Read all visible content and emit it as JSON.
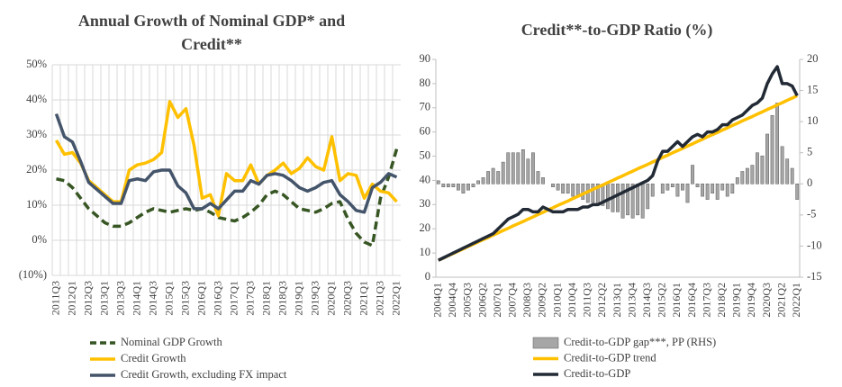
{
  "chart_data": [
    {
      "type": "line",
      "title": "Annual Growth of Nominal GDP* and Credit**",
      "categories": [
        "2011Q3",
        null,
        "2012Q1",
        null,
        "2012Q3",
        null,
        "2013Q1",
        null,
        "2013Q3",
        null,
        "2014Q1",
        null,
        "2014Q3",
        null,
        "2015Q1",
        null,
        "2015Q3",
        null,
        "2016Q1",
        null,
        "2016Q3",
        null,
        "2017Q1",
        null,
        "2017Q3",
        null,
        "2018Q1",
        null,
        "2018Q3",
        null,
        "2019Q1",
        null,
        "2019Q3",
        null,
        "2020Q1",
        null,
        "2020Q3",
        null,
        "2021Q1",
        null,
        "2021Q3",
        null,
        "2022Q1"
      ],
      "series": [
        {
          "name": "Nominal GDP Growth",
          "color": "#375623",
          "style": "dashed",
          "values": [
            17.5,
            17,
            15,
            12,
            9,
            7,
            5,
            4,
            4,
            5,
            6.5,
            8,
            9,
            8.5,
            8,
            8.5,
            9,
            8.5,
            9,
            8,
            6.5,
            6,
            5.5,
            6.5,
            8,
            10,
            13,
            14,
            13,
            11,
            9,
            8.5,
            8,
            9,
            10.5,
            11,
            6,
            2,
            -0.5,
            -1.5,
            12,
            18,
            26
          ]
        },
        {
          "name": "Credit Growth",
          "color": "#FFC000",
          "style": "solid",
          "values": [
            28.5,
            24.5,
            25,
            22,
            17,
            15,
            13,
            11,
            11,
            20,
            21.5,
            22,
            23,
            25,
            39.5,
            35,
            37.5,
            27,
            12,
            13,
            7,
            19,
            17,
            17,
            21.5,
            16,
            18.5,
            20,
            22,
            19,
            20.5,
            23.5,
            21,
            20,
            29.5,
            17,
            19,
            18.5,
            12,
            16,
            14,
            13.5,
            11
          ]
        },
        {
          "name": "Credit Growth, excluding FX impact",
          "color": "#44546A",
          "style": "solid",
          "values": [
            36,
            29.5,
            28,
            22.5,
            16.5,
            14.5,
            12.5,
            10.5,
            10.5,
            17,
            17.5,
            17,
            19.5,
            20,
            20,
            15.5,
            13.5,
            9,
            9,
            10.5,
            9,
            11.5,
            14,
            14,
            17,
            16,
            18.5,
            19,
            18.5,
            17,
            15,
            14,
            15,
            16.5,
            17,
            13,
            11,
            8.5,
            8,
            15,
            16.5,
            19,
            18
          ]
        }
      ],
      "ylim": [
        -10,
        50
      ],
      "yticks": [
        {
          "value": -10,
          "label": "(10%)"
        },
        {
          "value": 0,
          "label": "0%"
        },
        {
          "value": 10,
          "label": "10%"
        },
        {
          "value": 20,
          "label": "20%"
        },
        {
          "value": 30,
          "label": "30%"
        },
        {
          "value": 40,
          "label": "40%"
        },
        {
          "value": 50,
          "label": "50%"
        }
      ],
      "grid": true
    },
    {
      "type": "combo",
      "title": "Credit**-to-GDP Ratio (%)",
      "categories": [
        "2004Q1",
        null,
        null,
        "2004Q4",
        null,
        null,
        "2005Q3",
        null,
        null,
        "2006Q2",
        null,
        null,
        "2007Q1",
        null,
        null,
        "2007Q4",
        null,
        null,
        "2008Q3",
        null,
        null,
        "2009Q2",
        null,
        null,
        "2010Q1",
        null,
        null,
        "2010Q4",
        null,
        null,
        "2011Q3",
        null,
        null,
        "2012Q2",
        null,
        null,
        "2013Q1",
        null,
        null,
        "2013Q4",
        null,
        null,
        "2014Q3",
        null,
        null,
        "2015Q2",
        null,
        null,
        "2016Q1",
        null,
        null,
        "2016Q4",
        null,
        null,
        "2017Q3",
        null,
        null,
        "2018Q2",
        null,
        null,
        "2019Q1",
        null,
        null,
        "2019Q4",
        null,
        null,
        "2020Q3",
        null,
        null,
        "2021Q2",
        null,
        null,
        "2022Q1"
      ],
      "series": [
        {
          "name": "Credit-to-GDP gap***, PP (RHS)",
          "type": "bar",
          "axis": "y2",
          "color": "#A6A6A6",
          "edgecolor": "#595959",
          "values": [
            0.5,
            -0.5,
            -0.5,
            -0.5,
            -1,
            -1.5,
            -1,
            -0.5,
            0.5,
            1,
            2,
            2.5,
            2,
            3.5,
            5,
            5,
            5,
            5.5,
            4,
            5,
            2,
            1,
            0,
            -0.5,
            -1,
            -1.5,
            -1.5,
            -2,
            -2,
            -2.5,
            -3,
            -3,
            -3.5,
            -3.5,
            -4,
            -4.5,
            -4.5,
            -5.5,
            -5,
            -5.5,
            -5,
            -5.5,
            -4,
            -2,
            0,
            -1.5,
            -1,
            -0.5,
            -2,
            -1,
            -3,
            3,
            -0.5,
            -2,
            -2.5,
            -1.5,
            -2.5,
            -1,
            -2,
            -1.5,
            1,
            2,
            2.5,
            3,
            5,
            4.5,
            8,
            11,
            13,
            6,
            4,
            2.5,
            -2.5
          ]
        },
        {
          "name": "Credit-to-GDP trend",
          "type": "line",
          "color": "#FFC000",
          "values": [
            7.0,
            7.9,
            8.9,
            9.8,
            10.8,
            11.7,
            12.7,
            13.6,
            14.6,
            15.5,
            16.4,
            17.4,
            18.3,
            19.3,
            20.2,
            21.2,
            22.1,
            23.0,
            24.0,
            24.9,
            25.9,
            26.8,
            27.8,
            28.7,
            29.7,
            30.6,
            31.5,
            32.5,
            33.4,
            34.4,
            35.3,
            36.3,
            37.2,
            38.1,
            39.1,
            40.0,
            41.0,
            41.9,
            42.9,
            43.8,
            44.8,
            45.7,
            46.6,
            47.6,
            48.5,
            49.5,
            50.4,
            51.4,
            52.3,
            53.2,
            54.2,
            55.1,
            56.1,
            57.0,
            58.0,
            58.9,
            59.8,
            60.8,
            61.7,
            62.7,
            63.6,
            64.6,
            65.5,
            66.4,
            67.4,
            68.3,
            69.3,
            70.2,
            71.2,
            72.1,
            73.1,
            74.0,
            75.0
          ]
        },
        {
          "name": "Credit-to-GDP",
          "type": "line",
          "color": "#222A35",
          "values": [
            7,
            8,
            9,
            10,
            11,
            12,
            13,
            14,
            15,
            16,
            17,
            18,
            20,
            22,
            24,
            25,
            26,
            28,
            28,
            27,
            27,
            29,
            28,
            27,
            27,
            27,
            28,
            28,
            28,
            29,
            29,
            30,
            30,
            31,
            32,
            33,
            34,
            35,
            36,
            37,
            38,
            39,
            40,
            42,
            48,
            52,
            52,
            54,
            56,
            54,
            56,
            58,
            59,
            58,
            60,
            60,
            61,
            63,
            63,
            65,
            66,
            67,
            69,
            71,
            72,
            74,
            80,
            84,
            87,
            80,
            80,
            79,
            75
          ]
        }
      ],
      "ylim": [
        0,
        90
      ],
      "yticks": [
        0,
        10,
        20,
        30,
        40,
        50,
        60,
        70,
        80,
        90
      ],
      "y2lim": [
        -15,
        20
      ],
      "y2ticks": [
        -15,
        -10,
        -5,
        0,
        5,
        10,
        15,
        20
      ],
      "grid": false
    }
  ]
}
